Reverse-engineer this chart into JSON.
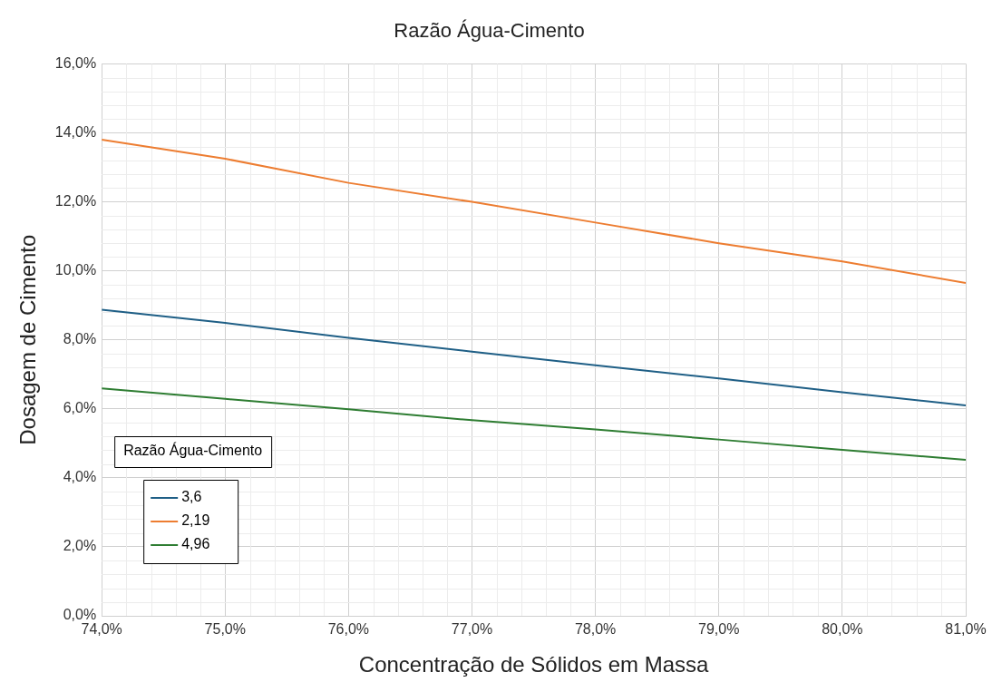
{
  "chart_data": {
    "type": "line",
    "title": "Razão Água-Cimento",
    "xlabel": "Concentração de Sólidos em Massa",
    "ylabel": "Dosagem de Cimento",
    "legend_title": "Razão Água-Cimento",
    "x": [
      74,
      75,
      76,
      77,
      78,
      79,
      80,
      81
    ],
    "series": [
      {
        "name": "3,6",
        "color": "#1f5f86",
        "values": [
          8.87,
          8.49,
          8.06,
          7.66,
          7.26,
          6.88,
          6.48,
          6.1
        ]
      },
      {
        "name": "2,19",
        "color": "#ed7d31",
        "values": [
          13.8,
          13.25,
          12.55,
          12.0,
          11.4,
          10.8,
          10.27,
          9.65
        ]
      },
      {
        "name": "4,96",
        "color": "#2e7d32",
        "values": [
          6.59,
          6.29,
          5.99,
          5.67,
          5.4,
          5.11,
          4.81,
          4.52
        ]
      }
    ],
    "xlim": [
      74,
      81
    ],
    "xticks": [
      {
        "value": 74,
        "label": "74,0%"
      },
      {
        "value": 75,
        "label": "75,0%"
      },
      {
        "value": 76,
        "label": "76,0%"
      },
      {
        "value": 77,
        "label": "77,0%"
      },
      {
        "value": 78,
        "label": "78,0%"
      },
      {
        "value": 79,
        "label": "79,0%"
      },
      {
        "value": 80,
        "label": "80,0%"
      },
      {
        "value": 81,
        "label": "81,0%"
      }
    ],
    "ylim": [
      0,
      16
    ],
    "yticks": [
      {
        "value": 0,
        "label": "0,0%"
      },
      {
        "value": 2,
        "label": "2,0%"
      },
      {
        "value": 4,
        "label": "4,0%"
      },
      {
        "value": 6,
        "label": "6,0%"
      },
      {
        "value": 8,
        "label": "8,0%"
      },
      {
        "value": 10,
        "label": "10,0%"
      },
      {
        "value": 12,
        "label": "12,0%"
      },
      {
        "value": 14,
        "label": "14,0%"
      },
      {
        "value": 16,
        "label": "16,0%"
      }
    ],
    "grid": true,
    "legend": "bottom left",
    "marker": "none",
    "line_style": "solid"
  }
}
